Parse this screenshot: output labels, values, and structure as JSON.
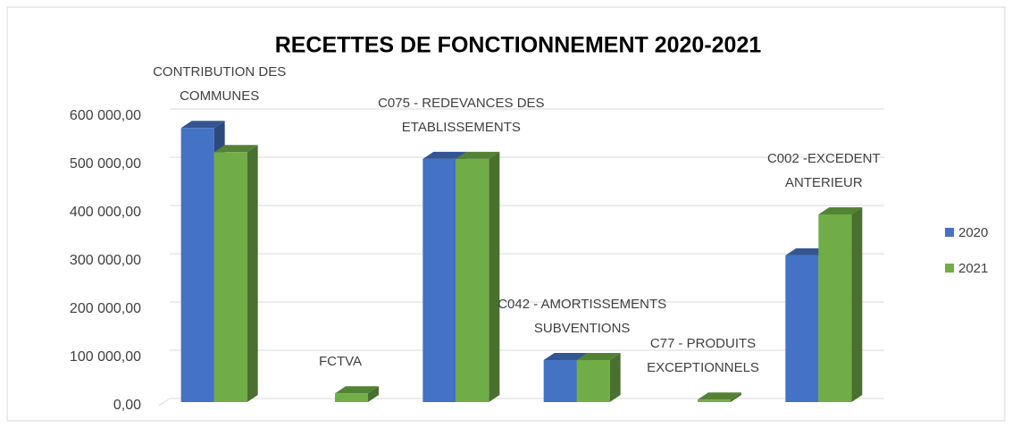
{
  "chart_data": {
    "type": "bar3d",
    "title": "RECETTES  DE FONCTIONNEMENT 2020-2021",
    "categories": [
      "CONTRIBUTION DES COMMUNES",
      "FCTVA",
      "C075 - REDEVANCES DES ETABLISSEMENTS",
      "C042 - AMORTISSEMENTS SUBVENTIONS",
      "C77 - PRODUITS EXCEPTIONNELS",
      "C002 -EXCEDENT ANTERIEUR"
    ],
    "series": [
      {
        "name": "2020",
        "color": "#4472c4",
        "values": [
          568000,
          0,
          504000,
          87000,
          0,
          304000
        ]
      },
      {
        "name": "2021",
        "color": "#70ad47",
        "values": [
          518000,
          18000,
          504000,
          87000,
          5000,
          389000
        ]
      }
    ],
    "ylim": [
      0,
      600000
    ],
    "yticks": [
      {
        "value": 0,
        "label": "0,00"
      },
      {
        "value": 100000,
        "label": "100 000,00"
      },
      {
        "value": 200000,
        "label": "200 000,00"
      },
      {
        "value": 300000,
        "label": "300 000,00"
      },
      {
        "value": 400000,
        "label": "400 000,00"
      },
      {
        "value": 500000,
        "label": "500 000,00"
      },
      {
        "value": 600000,
        "label": "600 000,00"
      }
    ],
    "grid": true,
    "legend": "right"
  }
}
